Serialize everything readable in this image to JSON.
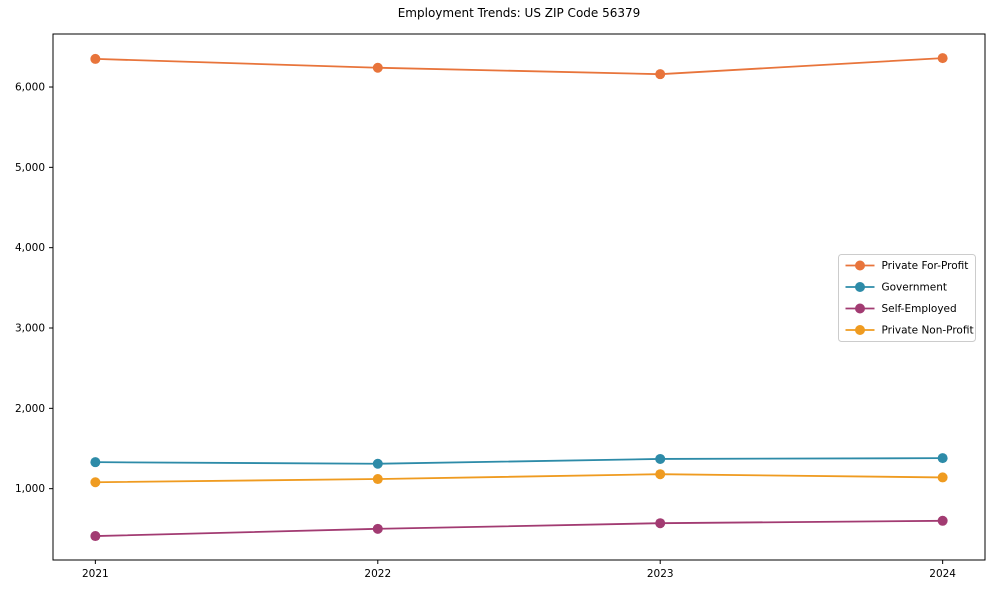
{
  "chart_data": {
    "type": "line",
    "title": "Employment Trends: US ZIP Code 56379",
    "xlabel": "",
    "ylabel": "",
    "categories": [
      "2021",
      "2022",
      "2023",
      "2024"
    ],
    "series": [
      {
        "name": "Private For-Profit",
        "color": "#e8743b",
        "values": [
          6350,
          6240,
          6160,
          6360
        ]
      },
      {
        "name": "Government",
        "color": "#2d8ba8",
        "values": [
          1330,
          1310,
          1370,
          1380
        ]
      },
      {
        "name": "Self-Employed",
        "color": "#a23b72",
        "values": [
          410,
          500,
          570,
          600
        ]
      },
      {
        "name": "Private Non-Profit",
        "color": "#ef9b20",
        "values": [
          1080,
          1120,
          1180,
          1140
        ]
      }
    ],
    "ylim": [
      112,
      6660
    ],
    "y_ticks": [
      {
        "value": 1000,
        "label": "1,000"
      },
      {
        "value": 2000,
        "label": "2,000"
      },
      {
        "value": 3000,
        "label": "3,000"
      },
      {
        "value": 4000,
        "label": "4,000"
      },
      {
        "value": 5000,
        "label": "5,000"
      },
      {
        "value": 6000,
        "label": "6,000"
      }
    ],
    "grid": false,
    "legend_position": "right",
    "marker": "circle",
    "axis_color": "#000000",
    "legend_border_color": "#cccccc",
    "background_color": "#ffffff"
  }
}
